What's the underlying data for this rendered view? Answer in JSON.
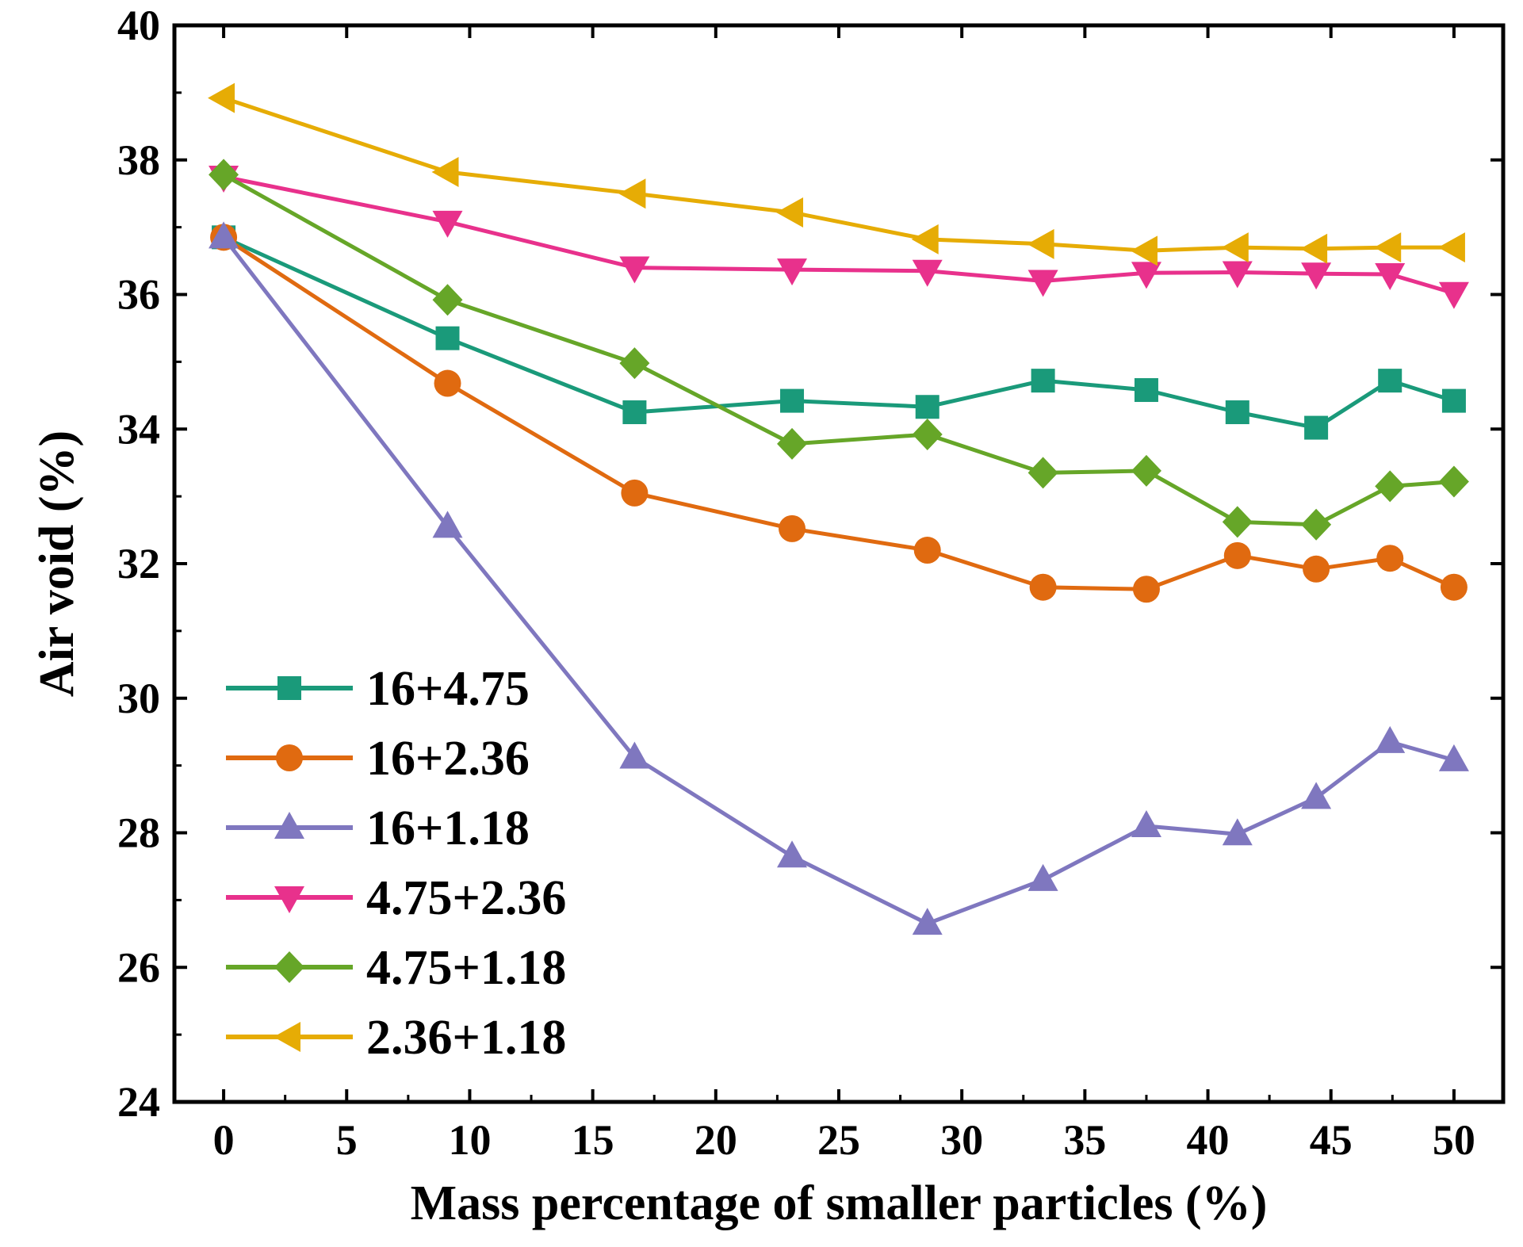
{
  "chart_data": {
    "type": "line",
    "title": "",
    "xlabel": "Mass percentage of smaller particles (%)",
    "ylabel": "Air void (%)",
    "xlim": [
      -2,
      52
    ],
    "ylim": [
      24,
      40
    ],
    "x_ticks": [
      0,
      5,
      10,
      15,
      20,
      25,
      30,
      35,
      40,
      45,
      50
    ],
    "y_ticks": [
      24,
      26,
      28,
      30,
      32,
      34,
      36,
      38,
      40
    ],
    "x": [
      0,
      9.1,
      16.7,
      23.1,
      28.6,
      33.3,
      37.5,
      41.2,
      44.4,
      47.4,
      50
    ],
    "legend_position": "bottom-left",
    "series": [
      {
        "name": "16+4.75",
        "color": "#1a9a7a",
        "marker": "square",
        "values": [
          36.85,
          35.35,
          34.25,
          34.42,
          34.33,
          34.72,
          34.58,
          34.25,
          34.02,
          34.72,
          34.42
        ]
      },
      {
        "name": "16+2.36",
        "color": "#e06a10",
        "marker": "circle",
        "values": [
          36.85,
          34.68,
          33.05,
          32.52,
          32.2,
          31.65,
          31.62,
          32.12,
          31.92,
          32.08,
          31.65
        ]
      },
      {
        "name": "16+1.18",
        "color": "#7f77bf",
        "marker": "triangle-up",
        "values": [
          36.85,
          32.55,
          29.12,
          27.65,
          26.65,
          27.3,
          28.1,
          27.98,
          28.52,
          29.35,
          29.08
        ]
      },
      {
        "name": "4.75+2.36",
        "color": "#e8318c",
        "marker": "triangle-down",
        "values": [
          37.75,
          37.08,
          36.4,
          36.37,
          36.35,
          36.2,
          36.32,
          36.33,
          36.31,
          36.3,
          36.02
        ]
      },
      {
        "name": "4.75+1.18",
        "color": "#66a628",
        "marker": "diamond",
        "values": [
          37.78,
          35.92,
          34.98,
          33.78,
          33.92,
          33.35,
          33.38,
          32.62,
          32.58,
          33.15,
          33.22
        ]
      },
      {
        "name": "2.36+1.18",
        "color": "#e6ac05",
        "marker": "triangle-left",
        "values": [
          38.92,
          37.82,
          37.5,
          37.22,
          36.82,
          36.75,
          36.65,
          36.7,
          36.68,
          36.7,
          36.7
        ]
      }
    ]
  }
}
